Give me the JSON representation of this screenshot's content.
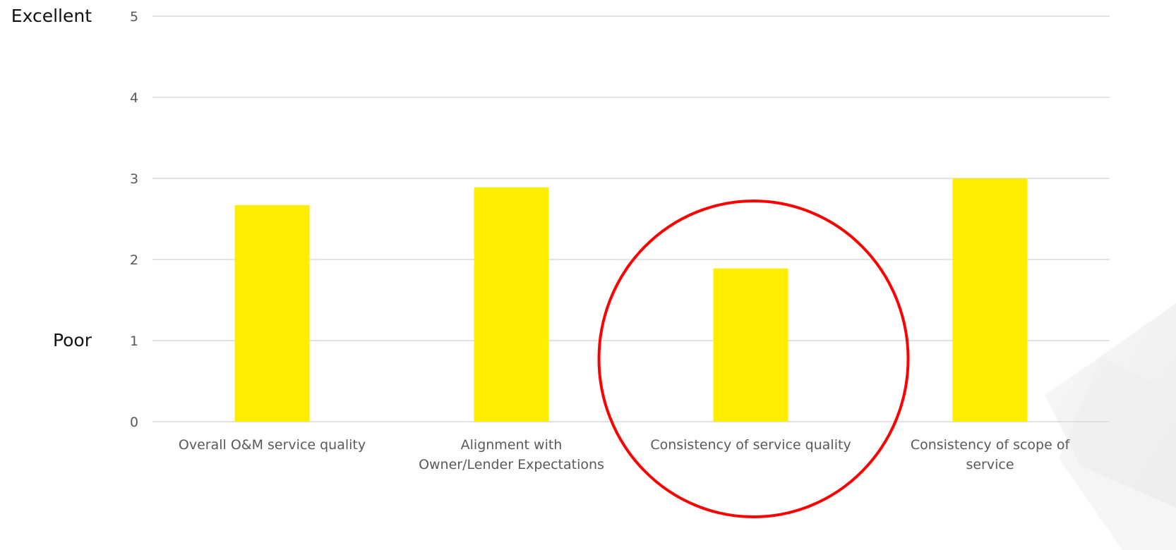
{
  "chart_data": {
    "type": "bar",
    "title": "",
    "xlabel": "",
    "ylabel": "",
    "ylim": [
      0,
      5
    ],
    "yticks": [
      0,
      1,
      2,
      3,
      4,
      5
    ],
    "grid": true,
    "categories": [
      [
        "Overall O&M service quality"
      ],
      [
        "Alignment with",
        "Owner/Lender Expectations"
      ],
      [
        "Consistency of service quality"
      ],
      [
        "Consistency of scope of",
        "service"
      ]
    ],
    "values": [
      2.67,
      2.89,
      1.89,
      3.0
    ],
    "bar_color": "#ffed00",
    "highlight": {
      "category_index": 2,
      "shape": "circle",
      "color": "#ff0000"
    }
  },
  "scale_labels": {
    "top": "Excellent",
    "bottom": "Poor"
  }
}
